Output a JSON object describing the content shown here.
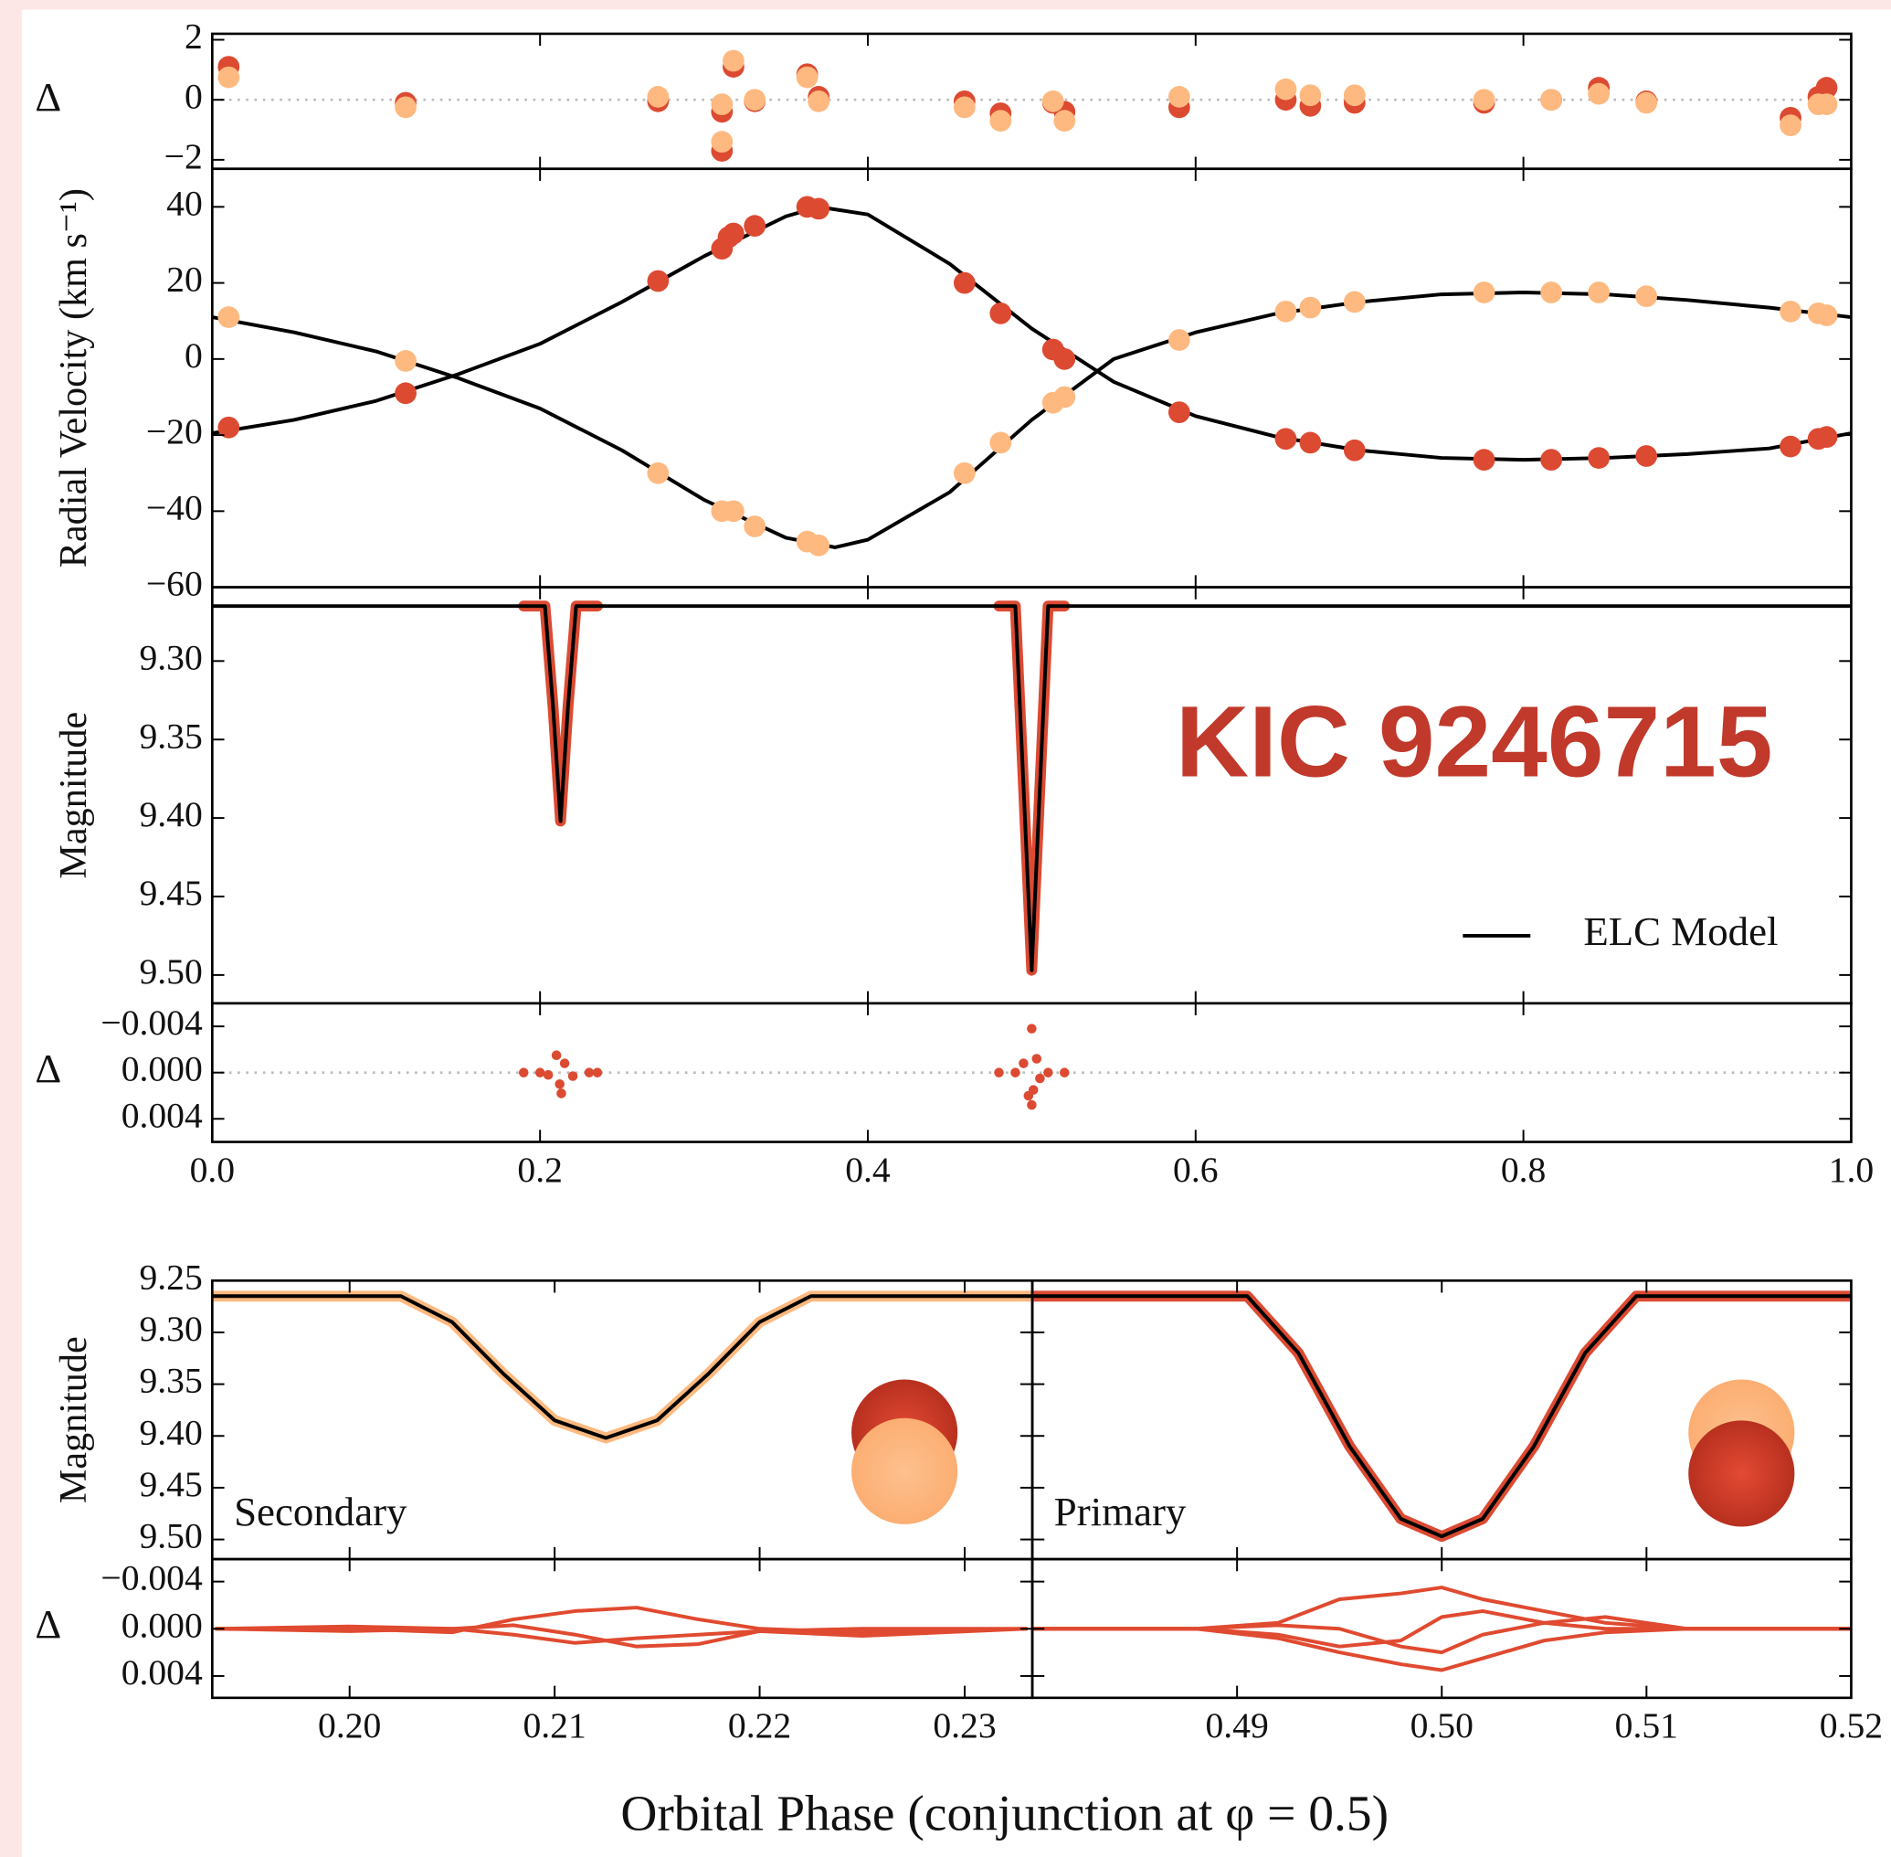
{
  "xlabel": "Orbital Phase (conjunction at φ = 0.5)",
  "chart_data": [
    {
      "type": "scatter",
      "ylabel": "Δ",
      "xlim": [
        0,
        1
      ],
      "ylim": [
        -2.3,
        2.2
      ],
      "zero_line": true,
      "xtick_labels": false,
      "ytick_labels": true,
      "xticks": [
        {
          "value": 0,
          "label": "0.0"
        },
        0.2,
        0.4,
        0.6,
        0.8,
        {
          "value": 1,
          "label": "1.0"
        }
      ],
      "yticks": [
        {
          "value": -2,
          "label": "−2"
        },
        0,
        2
      ],
      "series": [
        {
          "mode": "markers",
          "color": "#dc4a32",
          "size": 9,
          "x": [
            0.01,
            0.118,
            0.272,
            0.311,
            0.311,
            0.318,
            0.331,
            0.363,
            0.37,
            0.459,
            0.481,
            0.513,
            0.52,
            0.59,
            0.655,
            0.67,
            0.697,
            0.776,
            0.817,
            0.846,
            0.875,
            0.963,
            0.98,
            0.985
          ],
          "values": [
            1.1,
            -0.1,
            -0.05,
            -0.4,
            -1.7,
            1.1,
            -0.05,
            0.85,
            0.1,
            -0.05,
            -0.45,
            -0.1,
            -0.4,
            -0.25,
            0,
            -0.2,
            -0.1,
            -0.1,
            0,
            0.4,
            -0.05,
            -0.6,
            0.1,
            0.4
          ]
        },
        {
          "mode": "markers",
          "color": "#fdb97f",
          "size": 9,
          "x": [
            0.01,
            0.118,
            0.272,
            0.311,
            0.311,
            0.318,
            0.331,
            0.363,
            0.37,
            0.459,
            0.481,
            0.513,
            0.52,
            0.59,
            0.655,
            0.67,
            0.697,
            0.776,
            0.817,
            0.846,
            0.875,
            0.963,
            0.98,
            0.985
          ],
          "values": [
            0.75,
            -0.25,
            0.1,
            -0.15,
            -1.4,
            1.3,
            0,
            0.75,
            -0.05,
            -0.25,
            -0.7,
            -0.05,
            -0.7,
            0.1,
            0.35,
            0.15,
            0.15,
            0,
            0,
            0.2,
            -0.1,
            -0.85,
            -0.15,
            -0.15
          ]
        }
      ]
    },
    {
      "type": "scatter",
      "ylabel": "Radial Velocity (km s⁻¹)",
      "xlim": [
        0,
        1
      ],
      "ylim": [
        -60,
        50
      ],
      "xtick_labels": false,
      "ytick_labels": true,
      "xticks": [
        {
          "value": 0,
          "label": "0.0"
        },
        0.2,
        0.4,
        0.6,
        0.8,
        {
          "value": 1,
          "label": "1.0"
        }
      ],
      "yticks": [
        {
          "value": -60,
          "label": "−60"
        },
        {
          "value": -40,
          "label": "−40"
        },
        {
          "value": -20,
          "label": "−20"
        },
        0,
        20,
        40
      ],
      "series": [
        {
          "mode": "line",
          "color": "#000000",
          "linewidth": 3,
          "x": [
            0,
            0.05,
            0.1,
            0.15,
            0.2,
            0.25,
            0.3,
            0.35,
            0.37,
            0.4,
            0.45,
            0.5,
            0.55,
            0.6,
            0.65,
            0.7,
            0.75,
            0.8,
            0.85,
            0.9,
            0.95,
            1
          ],
          "values": [
            -19.5,
            -16,
            -11,
            -4,
            4,
            15,
            27,
            37.5,
            40,
            38,
            25,
            8,
            -6,
            -15,
            -20.5,
            -24,
            -26,
            -26.5,
            -26,
            -25,
            -23.5,
            -19.5
          ]
        },
        {
          "mode": "line",
          "color": "#000000",
          "linewidth": 3,
          "x": [
            0,
            0.05,
            0.1,
            0.15,
            0.2,
            0.25,
            0.3,
            0.35,
            0.38,
            0.4,
            0.45,
            0.5,
            0.55,
            0.6,
            0.65,
            0.7,
            0.75,
            0.8,
            0.85,
            0.9,
            0.95,
            1
          ],
          "values": [
            11,
            7,
            2,
            -5,
            -13,
            -24,
            -37,
            -47,
            -49.5,
            -47.5,
            -35,
            -16,
            0,
            7,
            12,
            15,
            17,
            17.5,
            17,
            15.5,
            13.5,
            11
          ]
        },
        {
          "mode": "markers",
          "color": "#dc4a32",
          "size": 9,
          "x": [
            0.01,
            0.118,
            0.272,
            0.311,
            0.315,
            0.318,
            0.331,
            0.363,
            0.37,
            0.459,
            0.481,
            0.513,
            0.52,
            0.59,
            0.655,
            0.67,
            0.697,
            0.776,
            0.817,
            0.846,
            0.875,
            0.963,
            0.98,
            0.985
          ],
          "values": [
            -18,
            -9,
            20.5,
            29,
            32,
            33,
            35,
            40,
            39.5,
            20,
            12,
            2.5,
            0,
            -14,
            -21,
            -22,
            -24,
            -26.5,
            -26.5,
            -26,
            -25.5,
            -23,
            -21,
            -20.5
          ]
        },
        {
          "mode": "markers",
          "color": "#fdb97f",
          "size": 9,
          "x": [
            0.01,
            0.118,
            0.272,
            0.311,
            0.318,
            0.331,
            0.363,
            0.37,
            0.459,
            0.481,
            0.513,
            0.52,
            0.59,
            0.655,
            0.67,
            0.697,
            0.776,
            0.817,
            0.846,
            0.875,
            0.963,
            0.98,
            0.985
          ],
          "values": [
            11,
            -0.5,
            -30,
            -40,
            -40,
            -44,
            -48,
            -49,
            -30,
            -22,
            -11.5,
            -10,
            5,
            12.5,
            13.5,
            15,
            17.5,
            17.5,
            17.5,
            16.5,
            12.5,
            12,
            11.5
          ]
        }
      ]
    },
    {
      "type": "scatter",
      "ylabel": "Magnitude",
      "xlim": [
        0,
        1
      ],
      "ylim": [
        9.518,
        9.253
      ],
      "xtick_labels": false,
      "ytick_labels": true,
      "annotation": "KIC 9246715",
      "legend": "lower right",
      "xticks": [
        {
          "value": 0,
          "label": "0.0"
        },
        0.2,
        0.4,
        0.6,
        0.8,
        {
          "value": 1,
          "label": "1.0"
        }
      ],
      "yticks": [
        {
          "value": 9.3,
          "label": "9.30"
        },
        9.35,
        {
          "value": 9.4,
          "label": "9.40"
        },
        9.45,
        {
          "value": 9.5,
          "label": "9.50"
        }
      ],
      "series": [
        {
          "mode": "line",
          "color": "#dc4a32",
          "linewidth": 9,
          "x": [
            0.19,
            0.203,
            0.208,
            0.2125,
            0.217,
            0.222,
            0.235,
            null,
            0.48,
            0.49,
            0.495,
            0.5,
            0.505,
            0.51,
            0.52
          ],
          "values": [
            9.265,
            9.265,
            9.33,
            9.402,
            9.33,
            9.265,
            9.265,
            null,
            9.265,
            9.265,
            9.38,
            9.497,
            9.38,
            9.265,
            9.265
          ]
        },
        {
          "mode": "line",
          "color": "#000000",
          "linewidth": 3,
          "name": "ELC Model",
          "x": [
            0,
            0.203,
            0.208,
            0.2125,
            0.217,
            0.222,
            0.49,
            0.495,
            0.5,
            0.505,
            0.51,
            1
          ],
          "values": [
            9.265,
            9.265,
            9.33,
            9.402,
            9.33,
            9.265,
            9.265,
            9.38,
            9.497,
            9.38,
            9.265,
            9.265
          ]
        }
      ]
    },
    {
      "type": "scatter",
      "ylabel": "Δ",
      "xlim": [
        0,
        1
      ],
      "ylim": [
        0.006,
        -0.006
      ],
      "zero_line": true,
      "xtick_labels": true,
      "ytick_labels": true,
      "xticks": [
        {
          "value": 0,
          "label": "0.0"
        },
        0.2,
        0.4,
        0.6,
        0.8,
        {
          "value": 1,
          "label": "1.0"
        }
      ],
      "yticks": [
        {
          "value": -0.004,
          "label": "−0.004"
        },
        {
          "value": 0,
          "label": "0.000"
        },
        0.004
      ],
      "series": [
        {
          "mode": "markers",
          "color": "#dc4a32",
          "size": 4,
          "x": [
            0.19,
            0.2,
            0.205,
            0.21,
            0.212,
            0.213,
            0.215,
            0.22,
            0.23,
            0.235,
            0.48,
            0.49,
            0.495,
            0.498,
            0.5,
            0.5,
            0.501,
            0.503,
            0.505,
            0.51,
            0.52
          ],
          "values": [
            0,
            0,
            0.0002,
            -0.0015,
            0.001,
            0.0018,
            -0.0008,
            0.0003,
            0,
            0,
            0,
            0,
            -0.0008,
            0.002,
            -0.0038,
            0.0028,
            0.0015,
            -0.0012,
            0.0005,
            0,
            0
          ]
        }
      ]
    },
    {
      "type": "scatter",
      "ylabel": "Magnitude",
      "label": "Secondary",
      "xlim": [
        0.1933,
        0.2333
      ],
      "ylim": [
        9.519,
        9.25
      ],
      "xtick_labels": false,
      "ytick_labels": true,
      "xticks": [
        {
          "value": 0.2,
          "label": "0.20"
        },
        0.21,
        0.22,
        0.23
      ],
      "yticks": [
        9.25,
        {
          "value": 9.3,
          "label": "9.30"
        },
        9.35,
        {
          "value": 9.4,
          "label": "9.40"
        },
        9.45,
        {
          "value": 9.5,
          "label": "9.50"
        }
      ],
      "series": [
        {
          "mode": "line",
          "color": "#fdb97f",
          "linewidth": 9,
          "x": [
            0.1933,
            0.2025,
            0.205,
            0.2075,
            0.21,
            0.2125,
            0.215,
            0.2175,
            0.22,
            0.2225,
            0.2333
          ],
          "values": [
            9.265,
            9.265,
            9.29,
            9.34,
            9.385,
            9.402,
            9.385,
            9.34,
            9.29,
            9.265,
            9.265
          ]
        },
        {
          "mode": "line",
          "color": "#000000",
          "linewidth": 3,
          "x": [
            0.1933,
            0.2025,
            0.205,
            0.2075,
            0.21,
            0.2125,
            0.215,
            0.2175,
            0.22,
            0.2225,
            0.2333
          ],
          "values": [
            9.265,
            9.265,
            9.29,
            9.34,
            9.385,
            9.402,
            9.385,
            9.34,
            9.29,
            9.265,
            9.265
          ]
        }
      ]
    },
    {
      "type": "scatter",
      "ylabel": "Δ",
      "xlim": [
        0.1933,
        0.2333
      ],
      "ylim": [
        0.00585,
        -0.0059
      ],
      "xtick_labels": true,
      "ytick_labels": true,
      "xticks": [
        {
          "value": 0.2,
          "label": "0.20"
        },
        0.21,
        0.22,
        0.23
      ],
      "yticks": [
        {
          "value": -0.004,
          "label": "−0.004"
        },
        {
          "value": 0,
          "label": "0.000"
        },
        0.004
      ],
      "series": [
        {
          "mode": "line",
          "color": "#e04a30",
          "linewidth": 3,
          "x": [
            0.1935,
            0.2,
            0.205,
            0.208,
            0.211,
            0.214,
            0.217,
            0.22,
            0.225,
            0.233
          ],
          "values": [
            0,
            0,
            0.0003,
            -0.0008,
            -0.0015,
            -0.0018,
            -0.0008,
            0,
            0.0003,
            0
          ]
        },
        {
          "mode": "line",
          "color": "#e04a30",
          "linewidth": 3,
          "x": [
            0.1935,
            0.2,
            0.205,
            0.208,
            0.211,
            0.214,
            0.217,
            0.22,
            0.225,
            0.233
          ],
          "values": [
            0,
            0.0002,
            0,
            0.0005,
            0.0012,
            0.0008,
            0.0005,
            0.0002,
            0,
            0
          ]
        },
        {
          "mode": "line",
          "color": "#e04a30",
          "linewidth": 3,
          "x": [
            0.1935,
            0.2,
            0.205,
            0.208,
            0.211,
            0.214,
            0.217,
            0.22,
            0.225,
            0.233
          ],
          "values": [
            0,
            -0.0002,
            0,
            -0.0003,
            0.0005,
            0.0015,
            0.0013,
            0.0002,
            0.0006,
            0
          ]
        }
      ]
    },
    {
      "type": "scatter",
      "label": "Primary",
      "xlim": [
        0.48,
        0.52
      ],
      "ylim": [
        9.519,
        9.25
      ],
      "xtick_labels": false,
      "ytick_labels": false,
      "xticks": [
        0.49,
        {
          "value": 0.5,
          "label": "0.50"
        },
        0.51,
        0.52
      ],
      "yticks": [
        9.25,
        9.3,
        9.35,
        9.4,
        9.45,
        9.5
      ],
      "series": [
        {
          "mode": "line",
          "color": "#dc4a32",
          "linewidth": 9,
          "x": [
            0.48,
            0.4905,
            0.493,
            0.4955,
            0.498,
            0.5,
            0.502,
            0.5045,
            0.507,
            0.5095,
            0.52
          ],
          "values": [
            9.265,
            9.265,
            9.32,
            9.41,
            9.48,
            9.497,
            9.48,
            9.41,
            9.32,
            9.265,
            9.265
          ]
        },
        {
          "mode": "line",
          "color": "#000000",
          "linewidth": 3,
          "x": [
            0.48,
            0.4905,
            0.493,
            0.4955,
            0.498,
            0.5,
            0.502,
            0.5045,
            0.507,
            0.5095,
            0.52
          ],
          "values": [
            9.265,
            9.265,
            9.32,
            9.41,
            9.48,
            9.497,
            9.48,
            9.41,
            9.32,
            9.265,
            9.265
          ]
        }
      ]
    },
    {
      "type": "scatter",
      "xlim": [
        0.48,
        0.52
      ],
      "ylim": [
        0.00585,
        -0.0059
      ],
      "xtick_labels": true,
      "ytick_labels": false,
      "xticks": [
        0.49,
        {
          "value": 0.5,
          "label": "0.50"
        },
        0.51,
        0.52
      ],
      "yticks": [
        -0.004,
        0,
        0.004
      ],
      "series": [
        {
          "mode": "line",
          "color": "#e04a30",
          "linewidth": 3,
          "x": [
            0.48,
            0.488,
            0.492,
            0.495,
            0.498,
            0.5,
            0.502,
            0.505,
            0.508,
            0.512,
            0.52
          ],
          "values": [
            0,
            0,
            -0.0005,
            -0.0025,
            -0.003,
            -0.0035,
            -0.0025,
            -0.0015,
            -0.0005,
            0,
            0
          ]
        },
        {
          "mode": "line",
          "color": "#e04a30",
          "linewidth": 3,
          "x": [
            0.48,
            0.488,
            0.492,
            0.495,
            0.498,
            0.5,
            0.502,
            0.505,
            0.508,
            0.512,
            0.52
          ],
          "values": [
            0,
            0,
            0.0005,
            0.0015,
            0.001,
            -0.001,
            -0.0015,
            -0.0005,
            0,
            0,
            0
          ]
        },
        {
          "mode": "line",
          "color": "#e04a30",
          "linewidth": 3,
          "x": [
            0.48,
            0.488,
            0.492,
            0.495,
            0.498,
            0.5,
            0.502,
            0.505,
            0.508,
            0.512,
            0.52
          ],
          "values": [
            0,
            0,
            0.0008,
            0.002,
            0.003,
            0.0035,
            0.0025,
            0.001,
            0.0003,
            0,
            0
          ]
        },
        {
          "mode": "line",
          "color": "#e04a30",
          "linewidth": 3,
          "x": [
            0.48,
            0.488,
            0.492,
            0.495,
            0.498,
            0.5,
            0.502,
            0.505,
            0.508,
            0.512,
            0.52
          ],
          "values": [
            0,
            0,
            -0.0003,
            0,
            0.0015,
            0.002,
            0.0005,
            -0.0005,
            -0.001,
            0,
            0
          ]
        }
      ]
    }
  ]
}
